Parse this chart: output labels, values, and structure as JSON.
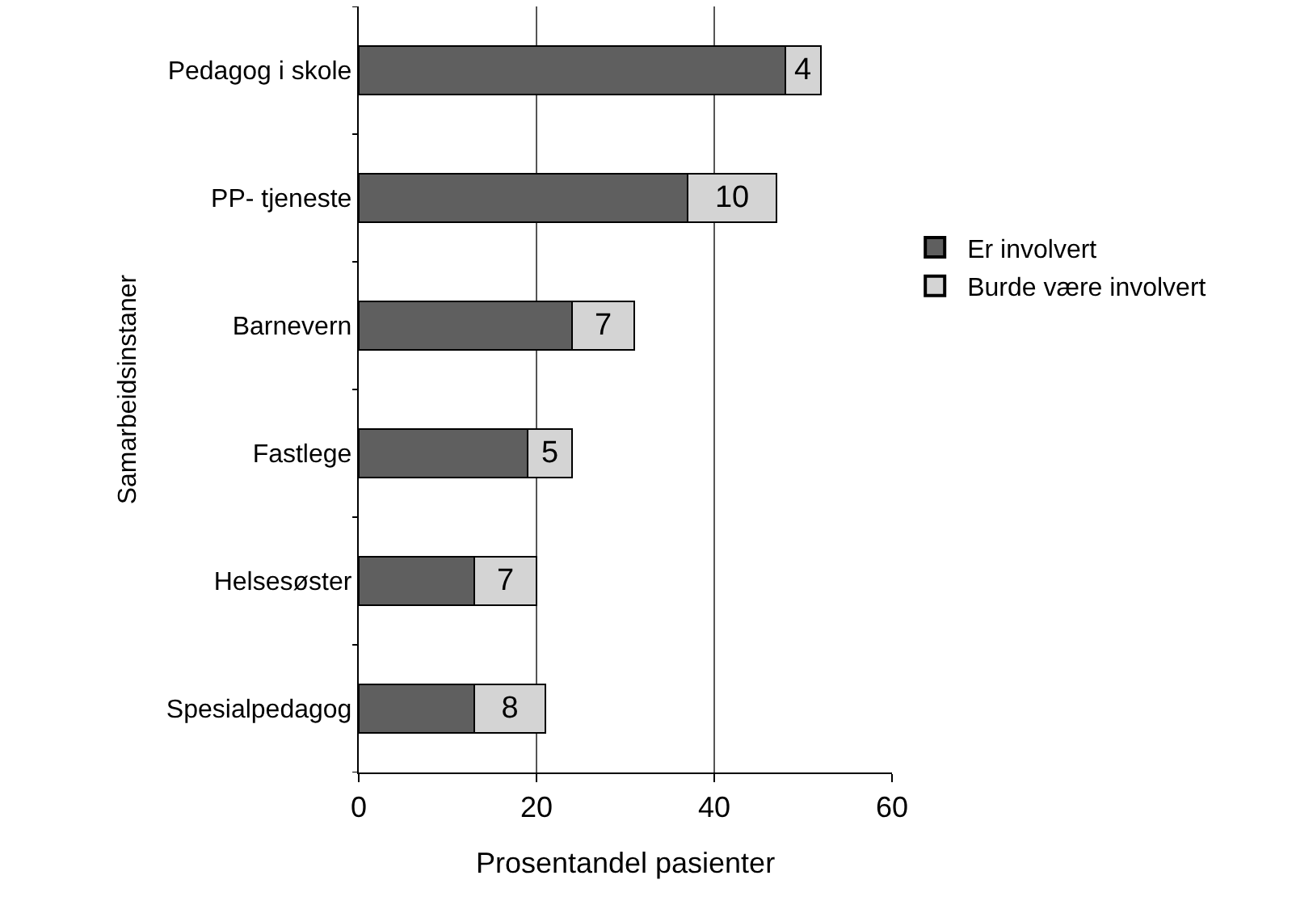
{
  "chart_data": {
    "type": "bar",
    "orientation": "horizontal",
    "stacked": true,
    "categories": [
      "Pedagog i skole",
      "PP- tjeneste",
      "Barnevern",
      "Fastlege",
      "Helsesøster",
      "Spesialpedagog"
    ],
    "series": [
      {
        "name": "Er involvert",
        "color": "#5f5f5f",
        "values": [
          48,
          37,
          24,
          19,
          13,
          13
        ]
      },
      {
        "name": "Burde være involvert",
        "color": "#d4d4d4",
        "values": [
          4,
          10,
          7,
          5,
          7,
          8
        ],
        "value_labels": [
          "4",
          "10",
          "7",
          "5",
          "7",
          "8"
        ]
      }
    ],
    "xlabel": "Prosentandel pasienter",
    "ylabel": "Samarbeidsinstaner",
    "xlim": [
      0,
      60
    ],
    "xticks": [
      0,
      20,
      40,
      60
    ],
    "grid": "x",
    "legend": "right"
  }
}
